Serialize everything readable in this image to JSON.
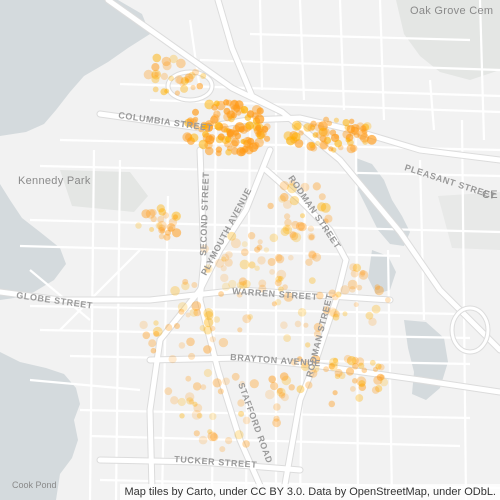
{
  "map": {
    "colors": {
      "land": "#f2f2f2",
      "water": "#d4dadd",
      "park": "#e4e6e4",
      "road": "#ffffff",
      "road_outline": "#dedede",
      "point": "#ff9b1a",
      "point_dense": "#ffb000"
    },
    "labels": {
      "oak_grove": "Oak Grove Cem",
      "kennedy_park": "Kennedy Park",
      "columbia": "COLUMBIA STREET",
      "second": "SECOND STREET",
      "plymouth": "PLYMOUTH AVENUE",
      "rodman_n": "RODMAN STREET",
      "rodman_s": "RODMAN STREET",
      "warren": "WARREN STREET",
      "brayton": "BRAYTON AVENUE",
      "globe": "GLOBE STREET",
      "pleasant": "PLEASANT STREET",
      "stafford": "STAFFORD ROAD",
      "tucker": "TUCKER STREET",
      "cook_pond": "Cook Pond",
      "ce": "CE"
    },
    "attribution": "Map tiles by Carto, under CC BY 3.0. Data by OpenStreetMap, under ODbL."
  }
}
